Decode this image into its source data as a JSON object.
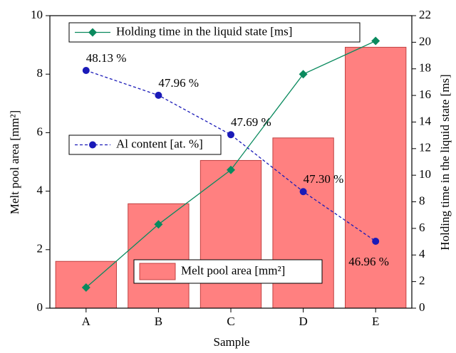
{
  "chart_data": {
    "type": "bar",
    "x_label": "Sample",
    "y_label": "Melt pool area [mm²]",
    "y2_label": "Holding time in the liquid state [ms]",
    "categories": [
      "A",
      "B",
      "C",
      "D",
      "E"
    ],
    "ylim": [
      0,
      10
    ],
    "yticks": [
      0,
      2,
      4,
      6,
      8,
      10
    ],
    "y2lim": [
      0,
      22
    ],
    "y2ticks": [
      0,
      2,
      4,
      6,
      8,
      10,
      12,
      14,
      16,
      18,
      20,
      22
    ],
    "series": [
      {
        "name": "Melt pool area [mm²]",
        "type": "bar",
        "color": "#ff8080",
        "values": [
          1.6,
          3.57,
          5.05,
          5.82,
          8.92
        ]
      },
      {
        "name": "Holding time in the liquid state [ms]",
        "type": "line",
        "axis": "y2",
        "marker": "diamond",
        "color": "#0a8a5e",
        "values": [
          1.55,
          6.3,
          10.4,
          17.6,
          20.1
        ]
      },
      {
        "name": "Al content [at. %]",
        "type": "line",
        "axis": "none",
        "marker": "circle",
        "linestyle": "dashed",
        "color": "#1a1ab8",
        "values": [
          48.13,
          47.96,
          47.69,
          47.3,
          46.96
        ],
        "value_labels": [
          "48.13 %",
          "47.96 %",
          "47.69 %",
          "47.30 %",
          "46.96 %"
        ]
      }
    ]
  }
}
